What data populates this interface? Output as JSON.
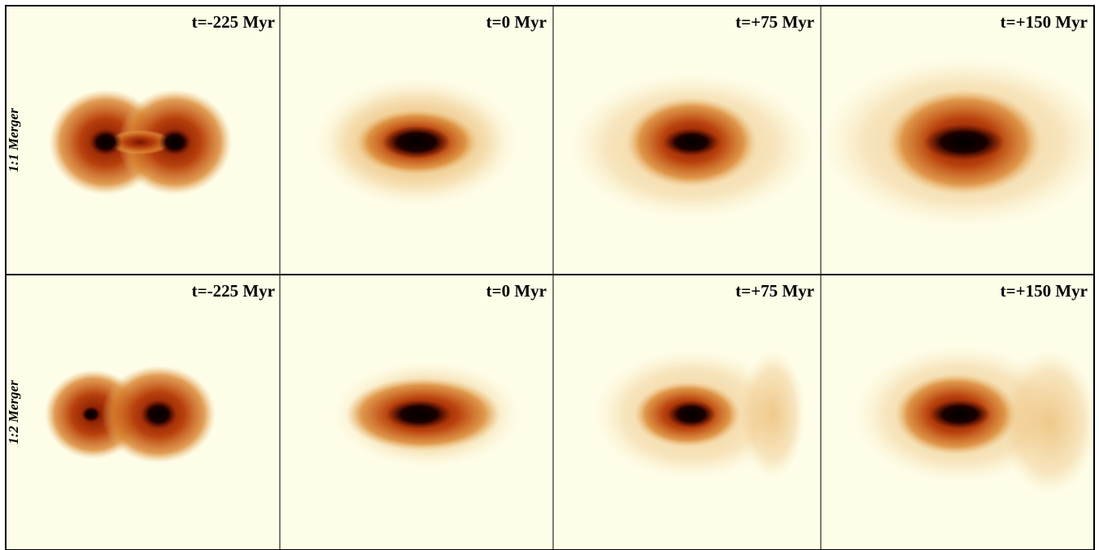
{
  "rows": [
    {
      "label": "1:1 Merger",
      "panels": [
        "t=-225 Myr",
        "t=0 Myr",
        "t=+75 Myr",
        "t=+150 Myr"
      ]
    },
    {
      "label": "1:2 Merger",
      "panels": [
        "t=-225 Myr",
        "t=0 Myr",
        "t=+75 Myr",
        "t=+150 Myr"
      ]
    }
  ]
}
